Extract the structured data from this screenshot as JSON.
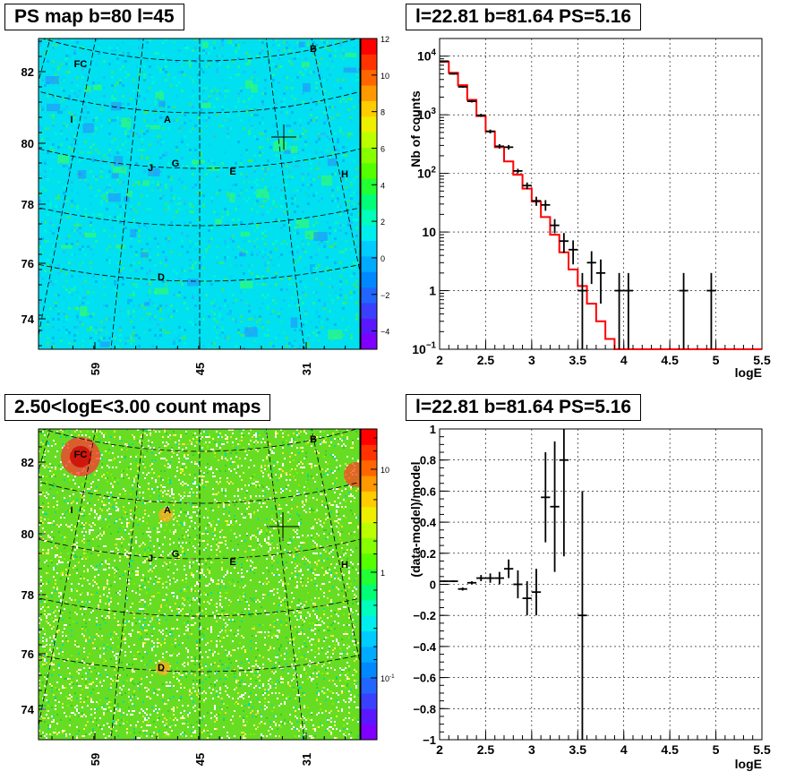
{
  "titles": {
    "ps_map": "PS map b=80 l=45",
    "spectrum": "l=22.81 b=81.64 PS=5.16",
    "count_map": "2.50<logE<3.00 count maps",
    "residual": "l=22.81 b=81.64 PS=5.16"
  },
  "colors": {
    "model_line": "#ff0000",
    "data_points": "#000000",
    "ps_background": "#00e0f0",
    "count_background": "#66dd22"
  },
  "chart_data": [
    {
      "type": "heatmap",
      "title": "PS map b=80 l=45",
      "x_ticks": [
        "59",
        "45",
        "31"
      ],
      "y_ticks": [
        "82",
        "80",
        "78",
        "76",
        "74"
      ],
      "colorbar_ticks": [
        "12",
        "10",
        "8",
        "6",
        "4",
        "2",
        "0",
        "−2",
        "−4"
      ],
      "colorbar_range": [
        -5,
        12
      ],
      "sources": [
        {
          "label": "FC"
        },
        {
          "label": "B"
        },
        {
          "label": "I"
        },
        {
          "label": "A"
        },
        {
          "label": "J"
        },
        {
          "label": "G"
        },
        {
          "label": "E"
        },
        {
          "label": "H"
        },
        {
          "label": "D"
        }
      ]
    },
    {
      "type": "line",
      "title": "l=22.81 b=81.64 PS=5.16",
      "xlabel": "logE",
      "ylabel": "Nb of counts",
      "xlim": [
        2,
        5.5
      ],
      "ylim": [
        0.1,
        20000
      ],
      "log_y": true,
      "grid": true,
      "x_ticks": [
        "2",
        "2.5",
        "3",
        "3.5",
        "4",
        "4.5",
        "5",
        "5.5"
      ],
      "y_ticks": [
        {
          "base": "10",
          "exp": "4"
        },
        {
          "base": "10",
          "exp": "3"
        },
        {
          "base": "10",
          "exp": "2"
        },
        {
          "base": "10",
          "exp": ""
        },
        {
          "base": "1",
          "exp": ""
        },
        {
          "base": "10",
          "exp": "−1"
        }
      ],
      "model_step": [
        [
          2.0,
          8000
        ],
        [
          2.1,
          5200
        ],
        [
          2.2,
          3200
        ],
        [
          2.3,
          1800
        ],
        [
          2.4,
          950
        ],
        [
          2.5,
          520
        ],
        [
          2.6,
          280
        ],
        [
          2.7,
          160
        ],
        [
          2.8,
          95
        ],
        [
          2.9,
          55
        ],
        [
          3.0,
          33
        ],
        [
          3.1,
          18
        ],
        [
          3.2,
          9
        ],
        [
          3.3,
          4.5
        ],
        [
          3.4,
          2.3
        ],
        [
          3.5,
          1.2
        ],
        [
          3.6,
          0.6
        ],
        [
          3.7,
          0.3
        ],
        [
          3.8,
          0.15
        ],
        [
          3.9,
          0.1
        ],
        [
          4.0,
          0.1
        ],
        [
          5.5,
          0.1
        ]
      ],
      "data_points": [
        {
          "x": 2.05,
          "y": 8200,
          "lo": 8000,
          "hi": 8400
        },
        {
          "x": 2.15,
          "y": 5000,
          "lo": 4850,
          "hi": 5150
        },
        {
          "x": 2.25,
          "y": 3000,
          "lo": 2890,
          "hi": 3110
        },
        {
          "x": 2.35,
          "y": 1700,
          "lo": 1620,
          "hi": 1780
        },
        {
          "x": 2.45,
          "y": 980,
          "lo": 920,
          "hi": 1040
        },
        {
          "x": 2.55,
          "y": 520,
          "lo": 480,
          "hi": 560
        },
        {
          "x": 2.65,
          "y": 290,
          "lo": 265,
          "hi": 315
        },
        {
          "x": 2.75,
          "y": 280,
          "lo": 255,
          "hi": 305
        },
        {
          "x": 2.85,
          "y": 110,
          "lo": 100,
          "hi": 120
        },
        {
          "x": 2.95,
          "y": 62,
          "lo": 54,
          "hi": 70
        },
        {
          "x": 3.05,
          "y": 34,
          "lo": 28,
          "hi": 40
        },
        {
          "x": 3.15,
          "y": 29,
          "lo": 23,
          "hi": 35
        },
        {
          "x": 3.25,
          "y": 13,
          "lo": 9.5,
          "hi": 16.6
        },
        {
          "x": 3.35,
          "y": 7,
          "lo": 4.4,
          "hi": 9.6
        },
        {
          "x": 3.45,
          "y": 5,
          "lo": 2.8,
          "hi": 7.2
        },
        {
          "x": 3.55,
          "y": 1,
          "lo": 0.1,
          "hi": 2
        },
        {
          "x": 3.65,
          "y": 3,
          "lo": 1.3,
          "hi": 4.7
        },
        {
          "x": 3.75,
          "y": 2,
          "lo": 0.6,
          "hi": 3.4
        },
        {
          "x": 3.95,
          "y": 1,
          "lo": 0.1,
          "hi": 2
        },
        {
          "x": 4.05,
          "y": 1,
          "lo": 0.1,
          "hi": 2
        },
        {
          "x": 4.65,
          "y": 1,
          "lo": 0.1,
          "hi": 2
        },
        {
          "x": 4.95,
          "y": 1,
          "lo": 0.1,
          "hi": 2
        }
      ]
    },
    {
      "type": "heatmap",
      "title": "2.50<logE<3.00 count maps",
      "x_ticks": [
        "59",
        "45",
        "31"
      ],
      "y_ticks": [
        "82",
        "80",
        "78",
        "76",
        "74"
      ],
      "colorbar_ticks": [
        {
          "base": "10",
          "exp": ""
        },
        {
          "base": "1",
          "exp": ""
        },
        {
          "base": "10",
          "exp": "-1"
        }
      ],
      "log_scale": true,
      "sources": [
        {
          "label": "FC"
        },
        {
          "label": "B"
        },
        {
          "label": "I"
        },
        {
          "label": "A"
        },
        {
          "label": "J"
        },
        {
          "label": "G"
        },
        {
          "label": "E"
        },
        {
          "label": "H"
        },
        {
          "label": "D"
        }
      ]
    },
    {
      "type": "scatter",
      "title": "l=22.81 b=81.64 PS=5.16",
      "xlabel": "logE",
      "ylabel": "(data-model)/model",
      "xlim": [
        2,
        5.5
      ],
      "ylim": [
        -1,
        1
      ],
      "grid": true,
      "x_ticks": [
        "2",
        "2.5",
        "3",
        "3.5",
        "4",
        "4.5",
        "5",
        "5.5"
      ],
      "y_ticks": [
        "1",
        "0.8",
        "0.6",
        "0.4",
        "0.2",
        "0",
        "−0.2",
        "−0.4",
        "−0.6",
        "−0.8",
        "−1"
      ],
      "points": [
        {
          "x": 2.05,
          "y": 0.02,
          "err": 0.005
        },
        {
          "x": 2.15,
          "y": 0.02,
          "err": 0.005
        },
        {
          "x": 2.25,
          "y": -0.03,
          "err": 0.01
        },
        {
          "x": 2.35,
          "y": 0.01,
          "err": 0.01
        },
        {
          "x": 2.45,
          "y": 0.04,
          "err": 0.02
        },
        {
          "x": 2.55,
          "y": 0.04,
          "err": 0.03
        },
        {
          "x": 2.65,
          "y": 0.04,
          "err": 0.04
        },
        {
          "x": 2.75,
          "y": 0.1,
          "err": 0.06
        },
        {
          "x": 2.85,
          "y": 0.0,
          "err": 0.09
        },
        {
          "x": 2.95,
          "y": -0.09,
          "err": 0.11
        },
        {
          "x": 3.05,
          "y": -0.05,
          "err": 0.15
        },
        {
          "x": 3.15,
          "y": 0.56,
          "err": 0.29
        },
        {
          "x": 3.25,
          "y": 0.5,
          "err": 0.42
        },
        {
          "x": 3.35,
          "y": 0.8,
          "err": 0.62
        },
        {
          "x": 3.55,
          "y": -0.2,
          "err": 0.8
        }
      ]
    }
  ]
}
